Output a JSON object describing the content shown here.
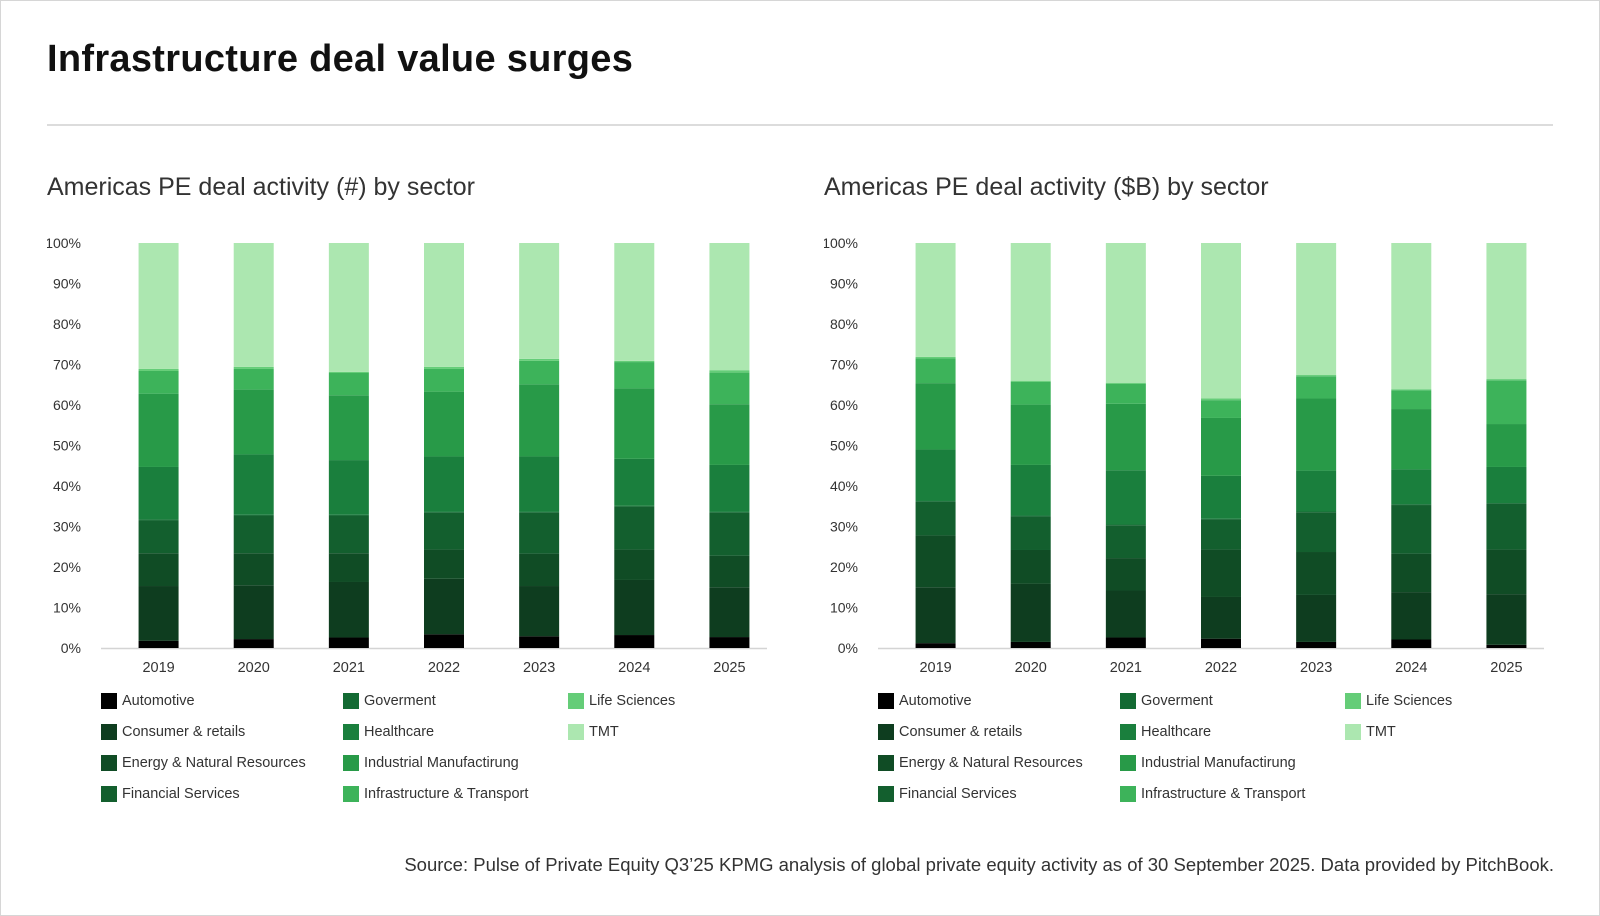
{
  "page": {
    "title": "Infrastructure deal value surges",
    "source": "Source: Pulse of Private Equity Q3’25 KPMG analysis of global private equity activity as of 30 September 2025. Data provided by PitchBook."
  },
  "legend": [
    {
      "name": "Automotive",
      "color": "#000000"
    },
    {
      "name": "Consumer & retails",
      "color": "#0e3d1f"
    },
    {
      "name": "Energy & Natural Resources",
      "color": "#104c25"
    },
    {
      "name": "Financial Services",
      "color": "#135f2e"
    },
    {
      "name": "Goverment",
      "color": "#136a33"
    },
    {
      "name": "Healthcare",
      "color": "#1a7f3d"
    },
    {
      "name": "Industrial Manufactirung",
      "color": "#289a48"
    },
    {
      "name": "Infrastructure & Transport",
      "color": "#3db35a"
    },
    {
      "name": "Life Sciences",
      "color": "#65cd78"
    },
    {
      "name": "TMT",
      "color": "#ace7b0"
    }
  ],
  "chart_data": [
    {
      "type": "bar",
      "stacked": true,
      "title": "Americas PE deal activity (#) by sector",
      "xlabel": "",
      "ylabel": "",
      "ylim": [
        0,
        100
      ],
      "yticks": [
        "0%",
        "10%",
        "20%",
        "30%",
        "40%",
        "50%",
        "60%",
        "70%",
        "80%",
        "90%",
        "100%"
      ],
      "categories": [
        "2019",
        "2020",
        "2021",
        "2022",
        "2023",
        "2024",
        "2025"
      ],
      "legend_position": "bottom",
      "series": [
        {
          "name": "Automotive",
          "values": [
            1.8,
            2.2,
            2.6,
            3.4,
            2.9,
            3.2,
            2.7
          ]
        },
        {
          "name": "Consumer & retails",
          "values": [
            13.5,
            13.3,
            13.7,
            13.7,
            12.4,
            13.6,
            12.3
          ]
        },
        {
          "name": "Energy & Natural Resources",
          "values": [
            8.1,
            7.9,
            7.1,
            7.2,
            8.0,
            7.5,
            7.8
          ]
        },
        {
          "name": "Financial Services",
          "values": [
            8.1,
            9.3,
            9.3,
            9.1,
            10.1,
            10.6,
            10.6
          ]
        },
        {
          "name": "Goverment",
          "values": [
            0.2,
            0.2,
            0.2,
            0.2,
            0.2,
            0.2,
            0.2
          ]
        },
        {
          "name": "Healthcare",
          "values": [
            13.0,
            14.9,
            13.5,
            13.7,
            13.7,
            11.6,
            11.6
          ]
        },
        {
          "name": "Industrial Manufactirung",
          "values": [
            18.1,
            16.0,
            16.0,
            16.0,
            17.8,
            17.4,
            15.0
          ]
        },
        {
          "name": "Infrastructure & Transport",
          "values": [
            5.6,
            5.1,
            5.5,
            5.6,
            5.8,
            6.5,
            7.8
          ]
        },
        {
          "name": "Life Sciences",
          "values": [
            0.5,
            0.5,
            0.3,
            0.5,
            0.5,
            0.3,
            0.6
          ]
        },
        {
          "name": "TMT",
          "values": [
            31.1,
            30.6,
            31.8,
            30.6,
            28.6,
            29.1,
            31.4
          ]
        }
      ]
    },
    {
      "type": "bar",
      "stacked": true,
      "title": "Americas PE deal activity ($B) by sector",
      "xlabel": "",
      "ylabel": "",
      "ylim": [
        0,
        100
      ],
      "yticks": [
        "0%",
        "10%",
        "20%",
        "30%",
        "40%",
        "50%",
        "60%",
        "70%",
        "80%",
        "90%",
        "100%"
      ],
      "categories": [
        "2019",
        "2020",
        "2021",
        "2022",
        "2023",
        "2024",
        "2025"
      ],
      "legend_position": "bottom",
      "series": [
        {
          "name": "Automotive",
          "values": [
            1.2,
            1.5,
            2.6,
            2.3,
            1.5,
            2.1,
            0.8
          ]
        },
        {
          "name": "Consumer & retails",
          "values": [
            13.8,
            14.4,
            11.6,
            10.3,
            11.6,
            11.7,
            12.5
          ]
        },
        {
          "name": "Energy & Natural Resources",
          "values": [
            12.8,
            8.3,
            8.0,
            11.7,
            10.6,
            9.5,
            11.0
          ]
        },
        {
          "name": "Financial Services",
          "values": [
            8.3,
            8.3,
            8.1,
            7.4,
            9.8,
            12.0,
            11.3
          ]
        },
        {
          "name": "Goverment",
          "values": [
            0.2,
            0.2,
            0.2,
            0.2,
            0.2,
            0.2,
            0.2
          ]
        },
        {
          "name": "Healthcare",
          "values": [
            12.7,
            12.5,
            13.4,
            10.6,
            10.1,
            8.6,
            8.9
          ]
        },
        {
          "name": "Industrial Manufactirung",
          "values": [
            16.4,
            14.9,
            16.4,
            14.3,
            17.8,
            14.9,
            10.6
          ]
        },
        {
          "name": "Infrastructure & Transport",
          "values": [
            6.1,
            5.6,
            4.9,
            4.4,
            5.5,
            4.6,
            10.8
          ]
        },
        {
          "name": "Life Sciences",
          "values": [
            0.4,
            0.3,
            0.3,
            0.4,
            0.3,
            0.3,
            0.3
          ]
        },
        {
          "name": "TMT",
          "values": [
            28.1,
            34.0,
            34.5,
            38.4,
            32.6,
            36.1,
            33.6
          ]
        }
      ]
    }
  ]
}
